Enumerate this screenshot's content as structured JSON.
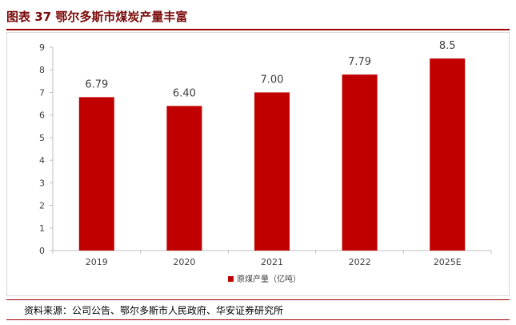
{
  "title": "图表 37 鄂尔多斯市煤炭产量丰富",
  "source": "资料来源：公司公告、鄂尔多斯市人民政府、华安证券研究所",
  "colors": {
    "bar": "#c00000",
    "accent": "#a00000",
    "grid": "#d9d9d9"
  },
  "chart_data": {
    "type": "bar",
    "categories": [
      "2019",
      "2020",
      "2021",
      "2022",
      "2025E"
    ],
    "series": [
      {
        "name": "原煤产量（亿吨）",
        "values": [
          6.79,
          6.4,
          7.0,
          7.79,
          8.5
        ]
      }
    ],
    "data_labels": [
      "6.79",
      "6.40",
      "7.00",
      "7.79",
      "8.5"
    ],
    "yticks": [
      "0",
      "1",
      "2",
      "3",
      "4",
      "5",
      "6",
      "7",
      "8",
      "9"
    ],
    "ylim": [
      0,
      9
    ],
    "grid": false,
    "legend_position": "bottom"
  }
}
